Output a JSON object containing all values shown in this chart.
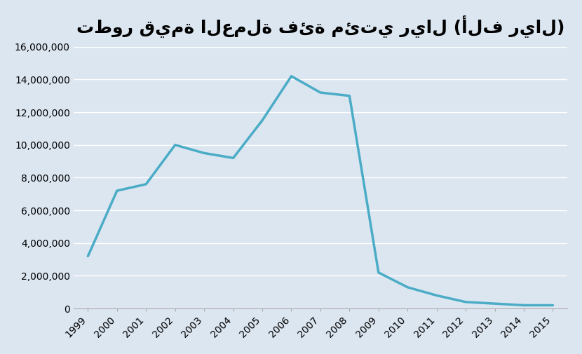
{
  "title": "تطور قيمة العملة فئة مئتي ريال (ألف ريال)",
  "years": [
    1999,
    2000,
    2001,
    2002,
    2003,
    2004,
    2005,
    2006,
    2007,
    2008,
    2009,
    2010,
    2011,
    2012,
    2013,
    2014,
    2015
  ],
  "values": [
    3200000,
    7200000,
    7600000,
    10000000,
    9500000,
    9200000,
    11500000,
    14200000,
    13200000,
    13000000,
    2200000,
    1300000,
    800000,
    400000,
    300000,
    200000,
    200000
  ],
  "line_color": "#4bacc6",
  "line_width": 2.5,
  "background_color": "#dce6f1",
  "plot_bg_color": "#dce6f1",
  "grid_color": "#ffffff",
  "ylim": [
    0,
    16000000
  ],
  "yticks": [
    0,
    2000000,
    4000000,
    6000000,
    8000000,
    10000000,
    12000000,
    14000000,
    16000000
  ],
  "title_fontsize": 18,
  "tick_fontsize": 10
}
